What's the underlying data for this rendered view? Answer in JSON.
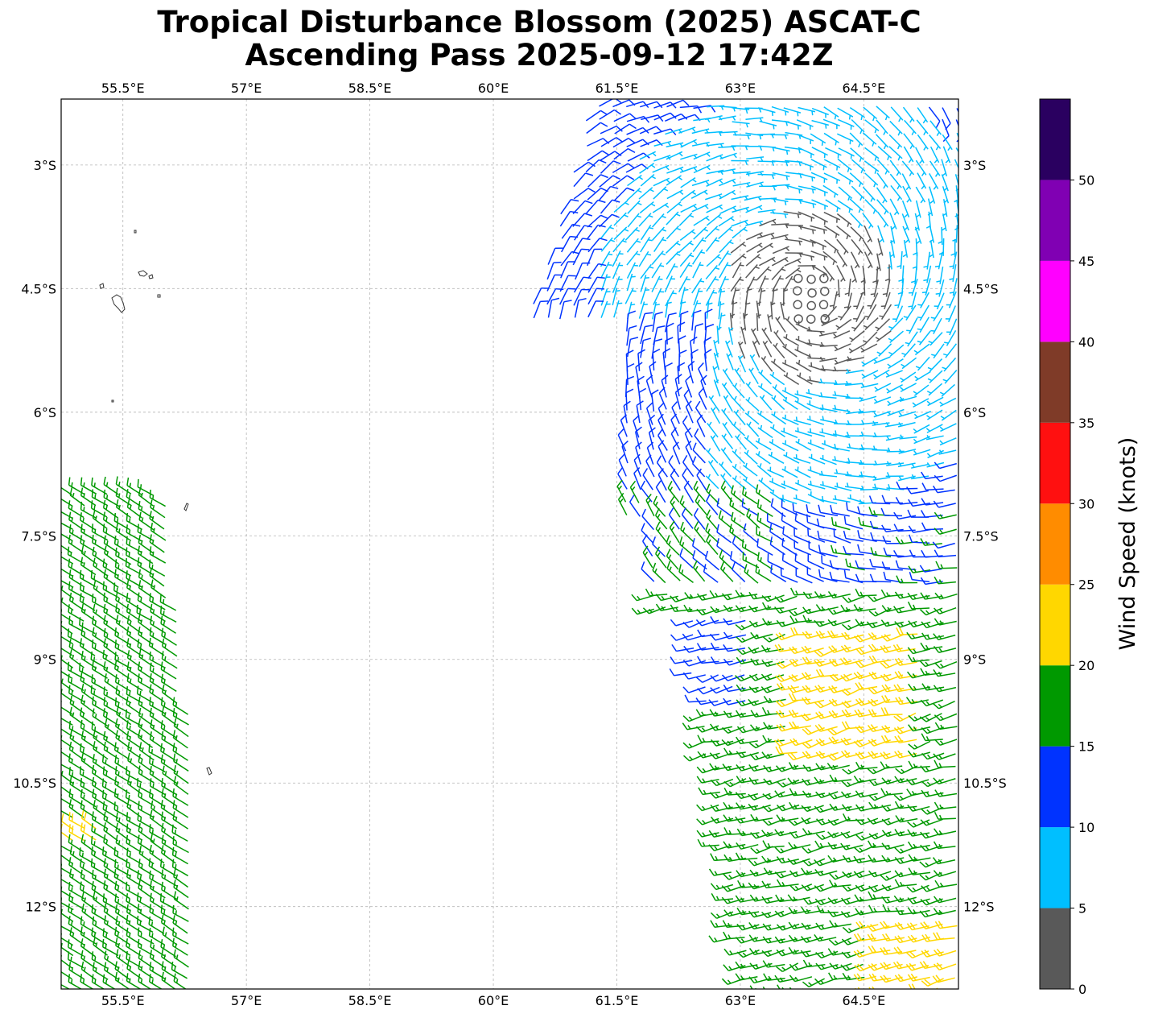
{
  "title": {
    "line1": "Tropical Disturbance Blossom (2025) ASCAT-C",
    "line2": "Ascending Pass 2025-09-12 17:42Z"
  },
  "map": {
    "lon_range": [
      54.75,
      65.65
    ],
    "lat_range": [
      -13.0,
      -2.2
    ],
    "lon_ticks": [
      {
        "value": 55.5,
        "label": "55.5°E"
      },
      {
        "value": 57,
        "label": "57°E"
      },
      {
        "value": 58.5,
        "label": "58.5°E"
      },
      {
        "value": 60,
        "label": "60°E"
      },
      {
        "value": 61.5,
        "label": "61.5°E"
      },
      {
        "value": 63,
        "label": "63°E"
      },
      {
        "value": 64.5,
        "label": "64.5°E"
      }
    ],
    "lat_ticks": [
      {
        "value": -3,
        "label": "3°S"
      },
      {
        "value": -4.5,
        "label": "4.5°S"
      },
      {
        "value": -6,
        "label": "6°S"
      },
      {
        "value": -7.5,
        "label": "7.5°S"
      },
      {
        "value": -9,
        "label": "9°S"
      },
      {
        "value": -10.5,
        "label": "10.5°S"
      },
      {
        "value": -12,
        "label": "12°S"
      }
    ],
    "gridlines": true
  },
  "colorbar": {
    "label": "Wind Speed (knots)",
    "bins": [
      {
        "from": 0,
        "to": 5,
        "color": "#595959"
      },
      {
        "from": 5,
        "to": 10,
        "color": "#00bfff"
      },
      {
        "from": 10,
        "to": 15,
        "color": "#0033ff"
      },
      {
        "from": 15,
        "to": 20,
        "color": "#009900"
      },
      {
        "from": 20,
        "to": 25,
        "color": "#ffd700"
      },
      {
        "from": 25,
        "to": 30,
        "color": "#ff8c00"
      },
      {
        "from": 30,
        "to": 35,
        "color": "#ff1010"
      },
      {
        "from": 35,
        "to": 40,
        "color": "#7f3b28"
      },
      {
        "from": 40,
        "to": 45,
        "color": "#ff00ff"
      },
      {
        "from": 45,
        "to": 50,
        "color": "#8000b3"
      },
      {
        "from": 50,
        "to": 55,
        "color": "#2a0060"
      }
    ],
    "tick_labels": [
      "0",
      "5",
      "10",
      "15",
      "20",
      "25",
      "30",
      "35",
      "40",
      "45",
      "50"
    ]
  }
}
